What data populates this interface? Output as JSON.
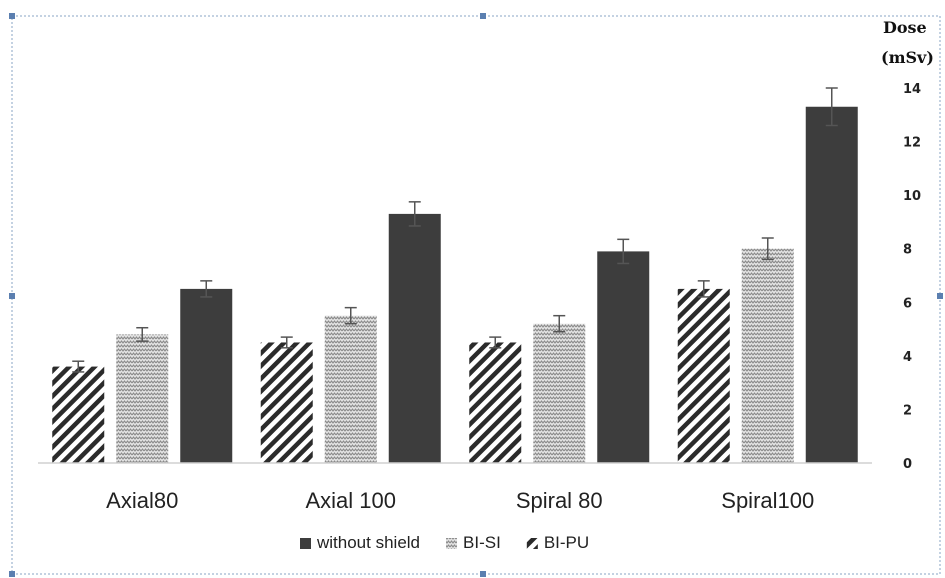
{
  "chart_data": {
    "type": "bar",
    "ylabel": [
      "Dose",
      "(mSv)"
    ],
    "ylim": [
      0,
      14
    ],
    "yticks": [
      "0",
      "2",
      "4",
      "6",
      "8",
      "10",
      "12",
      "14"
    ],
    "grid": false,
    "legend_position": "bottom",
    "categories": [
      "Axial80",
      "Axial 100",
      "Spiral 80",
      "Spiral100"
    ],
    "series": [
      {
        "name": "BI-PU",
        "values": [
          3.6,
          4.5,
          4.5,
          6.5
        ],
        "errors": [
          0.2,
          0.2,
          0.2,
          0.3
        ],
        "pattern": "diagonal-hatch",
        "color": "#3a3a3a"
      },
      {
        "name": "BI-SI",
        "values": [
          4.8,
          5.5,
          5.2,
          8.0
        ],
        "errors": [
          0.25,
          0.3,
          0.3,
          0.4
        ],
        "pattern": "fine-wave",
        "color": "#9a9a9a"
      },
      {
        "name": "without shield",
        "values": [
          6.5,
          9.3,
          7.9,
          13.3
        ],
        "errors": [
          0.3,
          0.45,
          0.45,
          0.7
        ],
        "pattern": "solid",
        "color": "#3d3d3d"
      }
    ],
    "legend_order": [
      "without shield",
      "BI-SI",
      "BI-PU"
    ]
  }
}
